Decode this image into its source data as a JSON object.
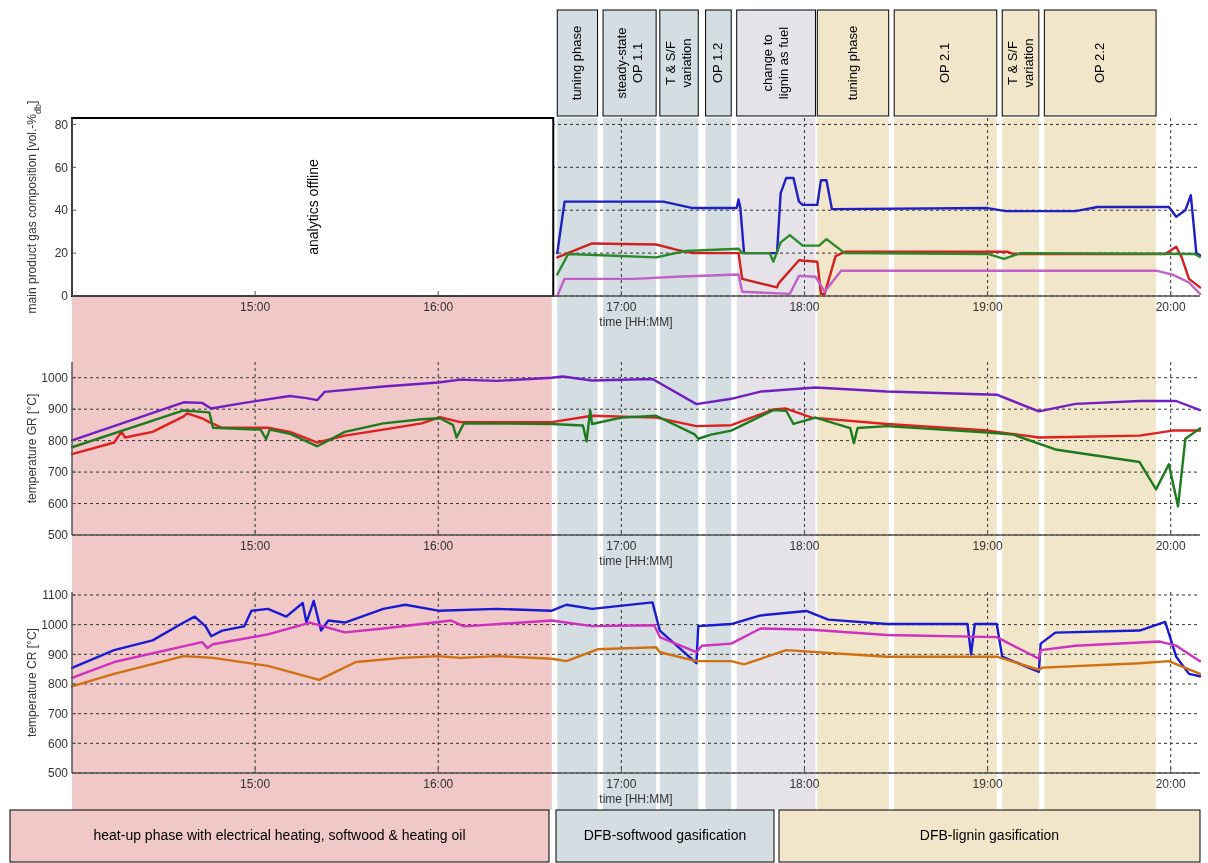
{
  "chart_data": [
    {
      "type": "line",
      "ylabel": "main product gas composition [vol.-%$_{db}$]",
      "xlabel": "time [HH:MM]",
      "xlim": [
        14.0,
        20.16
      ],
      "ylim": [
        0,
        83
      ],
      "yticks": [
        0,
        20,
        40,
        60,
        80
      ],
      "xticks": [
        {
          "value": 15,
          "label": "15:00"
        },
        {
          "value": 16,
          "label": "16:00"
        },
        {
          "value": 17,
          "label": "17:00"
        },
        {
          "value": 18,
          "label": "18:00"
        },
        {
          "value": 19,
          "label": "19:00"
        },
        {
          "value": 20,
          "label": "20:00"
        }
      ],
      "grid": true,
      "line_style": "solid",
      "marker": "none",
      "annotations": [
        "analytics offline"
      ],
      "bands": [
        {
          "axis": "x",
          "from": 16.65,
          "to": 16.87,
          "label": "tuning phase",
          "color": "#d3dde2"
        },
        {
          "axis": "x",
          "from": 16.9,
          "to": 17.19,
          "label": "steady-state OP 1.1",
          "color": "#d3dde2"
        },
        {
          "axis": "x",
          "from": 17.21,
          "to": 17.42,
          "label": "T & S/F variation",
          "color": "#d3dde2"
        },
        {
          "axis": "x",
          "from": 17.46,
          "to": 17.6,
          "label": "OP 1.2",
          "color": "#d3dde2"
        },
        {
          "axis": "x",
          "from": 17.63,
          "to": 18.06,
          "label": "change to lignin as fuel",
          "color": "#e6e3e8"
        },
        {
          "axis": "x",
          "from": 18.07,
          "to": 18.46,
          "label": "tuning phase",
          "color": "#f1e6c9"
        },
        {
          "axis": "x",
          "from": 18.49,
          "to": 19.05,
          "label": "OP 2.1",
          "color": "#f1e6c9"
        },
        {
          "axis": "x",
          "from": 19.08,
          "to": 19.28,
          "label": "T & S/F variation",
          "color": "#f1e6c9"
        },
        {
          "axis": "x",
          "from": 19.31,
          "to": 19.92,
          "label": "OP 2.2",
          "color": "#f1e6c9"
        }
      ],
      "series": [
        {
          "color": "#2020c0",
          "x": [
            16.65,
            16.69,
            17.23,
            17.39,
            17.63,
            17.64,
            17.65,
            17.67,
            17.85,
            17.87,
            17.9,
            17.94,
            17.97,
            17.99,
            18.07,
            18.09,
            18.12,
            18.15,
            19.0,
            19.1,
            19.48,
            19.6,
            19.99,
            20.03,
            20.08,
            20.11,
            20.14,
            20.16
          ],
          "values": [
            20,
            44,
            44,
            41,
            41,
            45,
            41,
            20,
            20,
            48,
            55,
            55,
            44,
            42.5,
            42.5,
            54,
            54,
            40.5,
            41,
            39.6,
            39.6,
            41.5,
            41.5,
            37,
            40,
            47,
            20,
            19
          ]
        },
        {
          "color": "#d02020",
          "x": [
            16.65,
            16.84,
            17.19,
            17.3,
            17.39,
            17.64,
            17.66,
            17.85,
            17.86,
            17.97,
            18.07,
            18.09,
            18.11,
            18.17,
            18.22,
            19.11,
            19.14,
            19.97,
            20.03,
            20.06,
            20.1,
            20.16
          ],
          "values": [
            18,
            24.5,
            24,
            21.6,
            20,
            20,
            8,
            4,
            6,
            16.7,
            16,
            1,
            1,
            18.6,
            20.6,
            20.6,
            19.6,
            19.6,
            23,
            18,
            8,
            4
          ]
        },
        {
          "color": "#2a8a2a",
          "x": [
            16.65,
            16.71,
            17.19,
            17.35,
            17.64,
            17.66,
            17.81,
            17.83,
            17.87,
            17.92,
            17.99,
            18.08,
            18.12,
            18.22,
            19.0,
            19.09,
            19.18,
            20.13,
            20.16
          ],
          "values": [
            10,
            19.6,
            18,
            21,
            22,
            20,
            20,
            16,
            25,
            28.4,
            23.5,
            23.5,
            26.5,
            20,
            19.6,
            17.3,
            20,
            19.6,
            18.2
          ]
        },
        {
          "color": "#c060c8",
          "x": [
            16.65,
            16.69,
            17.07,
            17.3,
            17.64,
            17.66,
            17.92,
            17.97,
            18.06,
            18.11,
            18.2,
            19.92,
            20.01,
            20.1,
            20.16
          ],
          "values": [
            0,
            8,
            8,
            9,
            10,
            2,
            1,
            9.4,
            9,
            2,
            11.8,
            11.8,
            10,
            6.3,
            1
          ]
        }
      ]
    },
    {
      "type": "line",
      "ylabel": "temperature GR [°C]",
      "xlabel": "time [HH:MM]",
      "xlim": [
        14.0,
        20.16
      ],
      "ylim": [
        500,
        1050
      ],
      "yticks": [
        500,
        600,
        700,
        800,
        900,
        1000
      ],
      "xticks": [
        {
          "value": 15,
          "label": "15:00"
        },
        {
          "value": 16,
          "label": "16:00"
        },
        {
          "value": 17,
          "label": "17:00"
        },
        {
          "value": 18,
          "label": "18:00"
        },
        {
          "value": 19,
          "label": "19:00"
        },
        {
          "value": 20,
          "label": "20:00"
        }
      ],
      "grid": true,
      "line_style": "solid",
      "marker": "none",
      "bands": [
        {
          "axis": "x",
          "from": 14.0,
          "to": 16.62,
          "color": "#f0c8c8"
        },
        {
          "axis": "x",
          "from": 16.65,
          "to": 16.87,
          "color": "#d3dde2"
        },
        {
          "axis": "x",
          "from": 16.9,
          "to": 17.19,
          "color": "#d3dde2"
        },
        {
          "axis": "x",
          "from": 17.21,
          "to": 17.42,
          "color": "#d3dde2"
        },
        {
          "axis": "x",
          "from": 17.46,
          "to": 17.6,
          "color": "#d3dde2"
        },
        {
          "axis": "x",
          "from": 17.63,
          "to": 18.06,
          "color": "#e6e3e8"
        },
        {
          "axis": "x",
          "from": 18.07,
          "to": 18.46,
          "color": "#f1e6c9"
        },
        {
          "axis": "x",
          "from": 18.49,
          "to": 19.05,
          "color": "#f1e6c9"
        },
        {
          "axis": "x",
          "from": 19.08,
          "to": 19.28,
          "color": "#f1e6c9"
        },
        {
          "axis": "x",
          "from": 19.31,
          "to": 19.92,
          "color": "#f1e6c9"
        }
      ],
      "series": [
        {
          "color": "#7020c0",
          "x": [
            14.0,
            14.61,
            14.71,
            14.76,
            14.94,
            15.19,
            15.28,
            15.34,
            15.38,
            15.7,
            16.0,
            16.12,
            16.32,
            16.62,
            16.68,
            16.84,
            17.17,
            17.41,
            17.6,
            17.76,
            18.06,
            18.45,
            19.05,
            19.28,
            19.48,
            19.83,
            20.03,
            20.16
          ],
          "values": [
            801,
            922,
            920,
            902,
            920,
            942,
            935,
            929,
            955,
            972,
            985,
            994,
            990,
            1000,
            1004,
            991,
            996,
            916,
            933,
            956,
            969,
            956,
            946,
            893,
            917,
            926,
            926,
            897
          ]
        },
        {
          "color": "#e02020",
          "x": [
            14.0,
            14.23,
            14.27,
            14.29,
            14.44,
            14.61,
            14.63,
            14.71,
            14.75,
            14.82,
            15.07,
            15.19,
            15.34,
            15.49,
            15.7,
            15.91,
            16.01,
            16.12,
            16.62,
            16.84,
            17.19,
            17.41,
            17.6,
            17.83,
            17.9,
            18.04,
            18.45,
            19.0,
            19.28,
            19.83,
            20.01,
            20.16
          ],
          "values": [
            757,
            794,
            828,
            810,
            828,
            877,
            887,
            871,
            859,
            841,
            841,
            828,
            794,
            816,
            835,
            855,
            875,
            859,
            859,
            879,
            873,
            846,
            849,
            899,
            902,
            873,
            853,
            832,
            810,
            816,
            832,
            832
          ]
        },
        {
          "color": "#1e7a1e",
          "x": [
            14.0,
            14.61,
            14.75,
            14.77,
            15.03,
            15.06,
            15.08,
            15.19,
            15.34,
            15.49,
            15.7,
            15.91,
            16.01,
            16.08,
            16.1,
            16.14,
            16.62,
            16.79,
            16.81,
            16.83,
            16.84,
            17.0,
            17.19,
            17.4,
            17.42,
            17.49,
            17.6,
            17.83,
            17.9,
            17.94,
            18.06,
            18.25,
            18.27,
            18.29,
            18.45,
            19.0,
            19.14,
            19.37,
            19.6,
            19.83,
            19.92,
            19.99,
            20.04,
            20.08,
            20.16
          ],
          "values": [
            779,
            896,
            890,
            841,
            835,
            805,
            835,
            822,
            782,
            828,
            855,
            868,
            871,
            850,
            810,
            855,
            853,
            848,
            798,
            896,
            853,
            873,
            879,
            820,
            806,
            819,
            832,
            897,
            895,
            853,
            873,
            840,
            792,
            840,
            846,
            826,
            819,
            772,
            752,
            732,
            645,
            725,
            591,
            806,
            839
          ]
        }
      ]
    },
    {
      "type": "line",
      "ylabel": "temperature CR [°C]",
      "xlabel": "time [HH:MM]",
      "xlim": [
        14.0,
        20.16
      ],
      "ylim": [
        500,
        1110
      ],
      "yticks": [
        500,
        600,
        700,
        800,
        900,
        1000,
        1100
      ],
      "xticks": [
        {
          "value": 15,
          "label": "15:00"
        },
        {
          "value": 16,
          "label": "16:00"
        },
        {
          "value": 17,
          "label": "17:00"
        },
        {
          "value": 18,
          "label": "18:00"
        },
        {
          "value": 19,
          "label": "19:00"
        },
        {
          "value": 20,
          "label": "20:00"
        }
      ],
      "grid": true,
      "line_style": "solid",
      "marker": "none",
      "annotations": [
        "heat-up phase with electrical heating, softwood & heating oil",
        "DFB-softwood gasification",
        "DFB-lignin gasification"
      ],
      "bands": [
        {
          "axis": "x",
          "from": 14.0,
          "to": 16.62,
          "color": "#f0c8c8"
        },
        {
          "axis": "x",
          "from": 16.65,
          "to": 16.87,
          "color": "#d3dde2"
        },
        {
          "axis": "x",
          "from": 16.9,
          "to": 17.19,
          "color": "#d3dde2"
        },
        {
          "axis": "x",
          "from": 17.21,
          "to": 17.42,
          "color": "#d3dde2"
        },
        {
          "axis": "x",
          "from": 17.46,
          "to": 17.6,
          "color": "#d3dde2"
        },
        {
          "axis": "x",
          "from": 17.63,
          "to": 18.06,
          "color": "#e6e3e8"
        },
        {
          "axis": "x",
          "from": 18.07,
          "to": 18.46,
          "color": "#f1e6c9"
        },
        {
          "axis": "x",
          "from": 18.49,
          "to": 19.05,
          "color": "#f1e6c9"
        },
        {
          "axis": "x",
          "from": 19.08,
          "to": 19.28,
          "color": "#f1e6c9"
        },
        {
          "axis": "x",
          "from": 19.31,
          "to": 19.92,
          "color": "#f1e6c9"
        }
      ],
      "series": [
        {
          "color": "#1a1ad0",
          "x": [
            14.0,
            14.23,
            14.44,
            14.61,
            14.67,
            14.73,
            14.76,
            14.82,
            14.94,
            14.98,
            15.07,
            15.17,
            15.26,
            15.28,
            15.32,
            15.36,
            15.4,
            15.49,
            15.7,
            15.82,
            16.0,
            16.32,
            16.62,
            16.7,
            16.84,
            17.17,
            17.21,
            17.41,
            17.42,
            17.6,
            17.76,
            18.01,
            18.13,
            18.45,
            18.89,
            18.91,
            18.93,
            19.05,
            19.08,
            19.28,
            19.29,
            19.37,
            19.83,
            19.97,
            20.0,
            20.03,
            20.1,
            20.16
          ],
          "values": [
            854,
            914,
            947,
            1007,
            1027,
            994,
            961,
            980,
            994,
            1047,
            1053,
            1027,
            1073,
            1007,
            1080,
            980,
            1014,
            1007,
            1053,
            1067,
            1047,
            1053,
            1047,
            1067,
            1053,
            1075,
            980,
            870,
            995,
            1002,
            1031,
            1046,
            1017,
            1002,
            1002,
            900,
            1002,
            1002,
            892,
            841,
            936,
            973,
            980,
            1009,
            951,
            892,
            834,
            826
          ]
        },
        {
          "color": "#d030c0",
          "x": [
            14.0,
            14.23,
            14.71,
            14.74,
            14.77,
            15.07,
            15.3,
            15.49,
            15.7,
            16.07,
            16.14,
            16.62,
            16.84,
            17.18,
            17.21,
            17.41,
            17.44,
            17.6,
            17.76,
            18.04,
            18.45,
            19.05,
            19.28,
            19.29,
            19.48,
            19.94,
            20.03,
            20.16
          ],
          "values": [
            821,
            874,
            941,
            921,
            934,
            967,
            1007,
            974,
            987,
            1014,
            994,
            1014,
            995,
            998,
            958,
            907,
            929,
            936,
            987,
            983,
            965,
            958,
            885,
            914,
            929,
            943,
            929,
            877
          ]
        },
        {
          "color": "#d07010",
          "x": [
            14.0,
            14.23,
            14.61,
            14.77,
            15.07,
            15.35,
            15.55,
            15.8,
            16.0,
            16.12,
            16.32,
            16.62,
            16.7,
            16.87,
            17.19,
            17.21,
            17.41,
            17.6,
            17.67,
            17.9,
            18.45,
            19.05,
            19.28,
            19.3,
            19.83,
            19.99,
            20.16
          ],
          "values": [
            792,
            834,
            894,
            888,
            861,
            814,
            874,
            888,
            894,
            888,
            894,
            885,
            877,
            917,
            924,
            907,
            877,
            877,
            866,
            914,
            892,
            892,
            848,
            855,
            870,
            877,
            834
          ]
        }
      ]
    }
  ]
}
